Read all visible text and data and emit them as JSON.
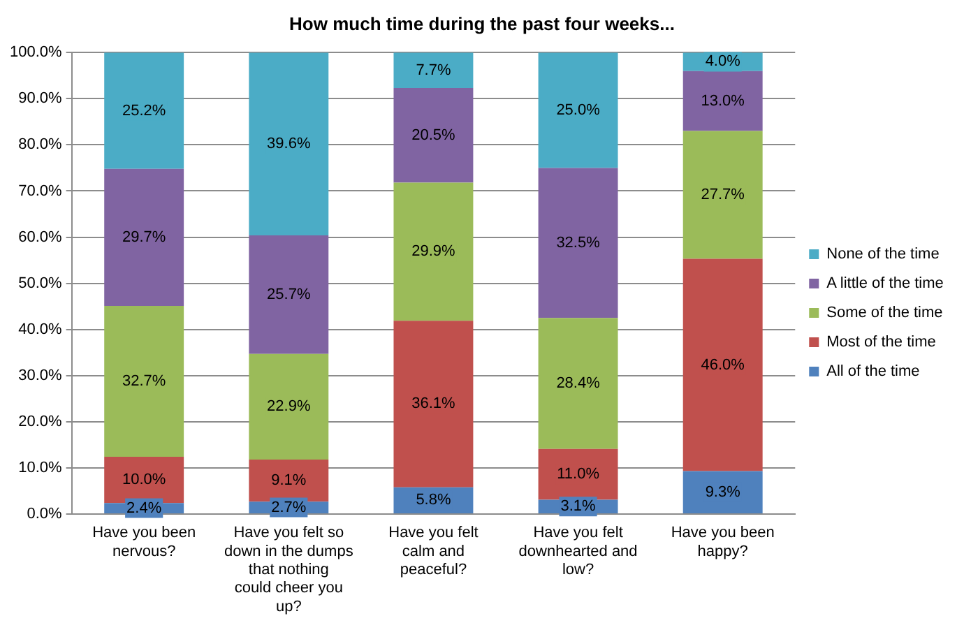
{
  "chart_data": {
    "type": "bar",
    "title": "How much time during the past four weeks...",
    "stacked": true,
    "grid": "y",
    "legend": "right",
    "categories": [
      "Have you been nervous?",
      "Have you felt so down in the dumps that nothing could cheer you up?",
      "Have you felt calm and peaceful?",
      "Have you felt downhearted and low?",
      "Have you been happy?"
    ],
    "ylim": [
      0,
      100
    ],
    "yticks": [
      {
        "value": 0,
        "label": "0.0%"
      },
      {
        "value": 10,
        "label": "10.0%"
      },
      {
        "value": 20,
        "label": "20.0%"
      },
      {
        "value": 30,
        "label": "30.0%"
      },
      {
        "value": 40,
        "label": "40.0%"
      },
      {
        "value": 50,
        "label": "50.0%"
      },
      {
        "value": 60,
        "label": "60.0%"
      },
      {
        "value": 70,
        "label": "70.0%"
      },
      {
        "value": 80,
        "label": "80.0%"
      },
      {
        "value": 90,
        "label": "90.0%"
      },
      {
        "value": 100,
        "label": "100.0%"
      }
    ],
    "series": [
      {
        "name": "All of the time",
        "color": "#4f81bd",
        "values": [
          2.4,
          2.7,
          5.8,
          3.1,
          9.3
        ],
        "value_labels": [
          "2.4%",
          "2.7%",
          "5.8%",
          "3.1%",
          "9.3%"
        ]
      },
      {
        "name": "Most of the time",
        "color": "#c0504d",
        "values": [
          10.0,
          9.1,
          36.1,
          11.0,
          46.0
        ],
        "value_labels": [
          "10.0%",
          "9.1%",
          "36.1%",
          "11.0%",
          "46.0%"
        ]
      },
      {
        "name": "Some of the time",
        "color": "#9bbb59",
        "values": [
          32.7,
          22.9,
          29.9,
          28.4,
          27.7
        ],
        "value_labels": [
          "32.7%",
          "22.9%",
          "29.9%",
          "28.4%",
          "27.7%"
        ]
      },
      {
        "name": "A little of the time",
        "color": "#8064a2",
        "values": [
          29.7,
          25.7,
          20.5,
          32.5,
          13.0
        ],
        "value_labels": [
          "29.7%",
          "25.7%",
          "20.5%",
          "32.5%",
          "13.0%"
        ]
      },
      {
        "name": "None of the time",
        "color": "#4bacc6",
        "values": [
          25.2,
          39.6,
          7.7,
          25.0,
          4.0
        ],
        "value_labels": [
          "25.2%",
          "39.6%",
          "7.7%",
          "25.0%",
          "4.0%"
        ]
      }
    ]
  }
}
